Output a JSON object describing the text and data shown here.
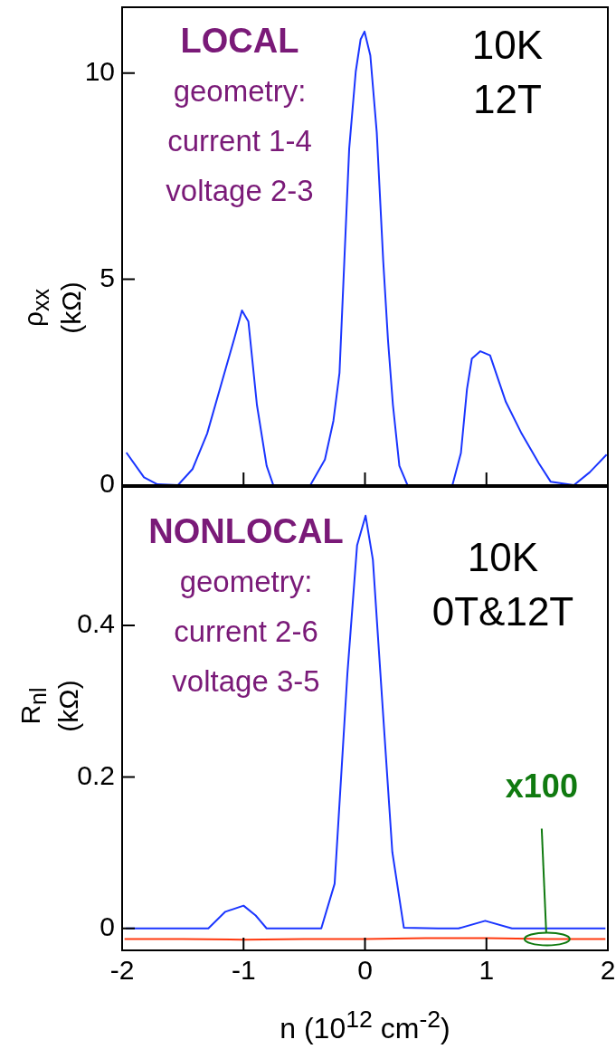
{
  "chart_data": [
    {
      "type": "line",
      "ylabel": "ρ$_{xx}$ (kΩ)",
      "annotations": [
        "LOCAL",
        "geometry:",
        "current 1-4",
        "voltage 2-3",
        "10K",
        "12T"
      ],
      "xlim": [
        -2,
        2
      ],
      "xticks": [
        -2,
        -1,
        0,
        1,
        2
      ],
      "ylim": [
        0,
        11.6
      ],
      "yticks": [
        0,
        5,
        10
      ],
      "tick_labels": "y",
      "series": [
        {
          "color": "#1a35ff",
          "x": [
            -1.965,
            -1.82,
            -1.71,
            -1.54,
            -1.42,
            -1.3,
            -1.18,
            -1.074,
            -1.013,
            -0.96,
            -0.89,
            -0.81,
            -0.755,
            -0.45,
            -0.33,
            -0.26,
            -0.21,
            -0.17,
            -0.13,
            -0.076,
            -0.036,
            -0.004,
            0.044,
            0.097,
            0.15,
            0.19,
            0.23,
            0.283,
            0.35,
            0.72,
            0.79,
            0.84,
            0.88,
            0.95,
            1.03,
            1.16,
            1.29,
            1.43,
            1.53,
            1.72,
            1.85,
            1.99
          ],
          "values": [
            0.79,
            0.19,
            0.02,
            0,
            0.39,
            1.25,
            2.49,
            3.58,
            4.24,
            3.97,
            1.95,
            0.47,
            0,
            0,
            0.62,
            1.56,
            2.72,
            5.45,
            8.17,
            10.04,
            10.82,
            11.01,
            10.43,
            8.56,
            5.45,
            3.5,
            1.95,
            0.47,
            0,
            0,
            0.78,
            2.33,
            3.07,
            3.25,
            3.15,
            2.02,
            1.25,
            0.54,
            0.08,
            0,
            0.31,
            0.74
          ]
        }
      ]
    },
    {
      "type": "line",
      "ylabel": "R$_{nl}$ (kΩ)",
      "xlabel": "n (10$^{12}$ cm$^{-2}$)",
      "annotations": [
        "NONLOCAL",
        "geometry:",
        "current 2-6",
        "voltage 3-5",
        "10K",
        "0T&12T",
        {
          "text": "x100",
          "x": 1.5,
          "y": -0.014
        }
      ],
      "xlim": [
        -2,
        2
      ],
      "xticks": [
        -2,
        -1,
        0,
        1,
        2
      ],
      "ylim": [
        -0.029,
        0.583
      ],
      "yticks": [
        0,
        0.2,
        0.4
      ],
      "series": [
        {
          "color": "#1a35ff",
          "x": [
            -1.97,
            -1.5,
            -1.29,
            -1.15,
            -1.0,
            -0.9,
            -0.81,
            -0.5,
            -0.36,
            -0.25,
            -0.145,
            -0.065,
            0.005,
            0.065,
            0.145,
            0.225,
            0.32,
            0.6,
            0.77,
            0.99,
            1.21,
            1.6,
            1.98
          ],
          "values": [
            0,
            0,
            0,
            0.022,
            0.03,
            0.017,
            0,
            0,
            0,
            0.059,
            0.336,
            0.506,
            0.545,
            0.487,
            0.293,
            0.101,
            0.001,
            0,
            0,
            0.01,
            0,
            0,
            0
          ]
        },
        {
          "color": "#ff3a10",
          "x": [
            -1.98,
            -1.5,
            -1.0,
            -0.5,
            0,
            0.5,
            1.0,
            1.5,
            1.98
          ],
          "values": [
            -0.014,
            -0.014,
            -0.015,
            -0.014,
            -0.014,
            -0.013,
            -0.013,
            -0.014,
            -0.014
          ]
        }
      ]
    }
  ]
}
